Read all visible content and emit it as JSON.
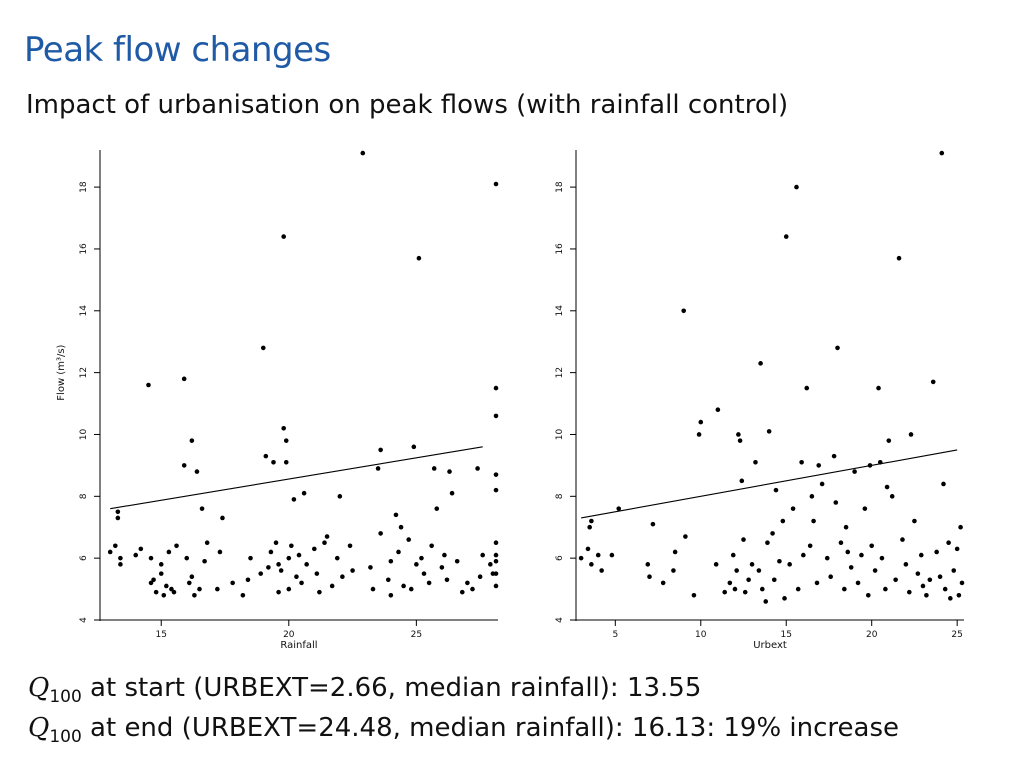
{
  "slide": {
    "title": "Peak flow changes",
    "subtitle": "Impact of urbanisation on peak flows (with rainfall control)"
  },
  "stats": [
    {
      "q_label": "Q",
      "q_sub": "100",
      "text": " at start (URBEXT=2.66, median rainfall):  13.55"
    },
    {
      "q_label": "Q",
      "q_sub": "100",
      "text": " at end (URBEXT=24.48, median rainfall):  16.13:  19% increase"
    }
  ],
  "chart_data": [
    {
      "type": "scatter",
      "xlabel": "Rainfall",
      "ylabel": "Flow (m³/s)",
      "xlim": [
        12.6,
        28.2
      ],
      "ylim": [
        4,
        19.2
      ],
      "xticks": [
        15,
        20,
        25
      ],
      "xtick_labels": [
        "15",
        "20",
        "25"
      ],
      "yticks": [
        4,
        6,
        8,
        10,
        12,
        14,
        16,
        18
      ],
      "ytick_labels": [
        "4",
        "6",
        "8",
        "10",
        "12",
        "14",
        "16",
        "18"
      ],
      "point_color": "#000000",
      "trend_line": {
        "x": [
          13.0,
          27.6
        ],
        "y": [
          7.6,
          9.6
        ]
      },
      "points": [
        [
          13.0,
          6.2
        ],
        [
          13.2,
          6.4
        ],
        [
          13.3,
          7.3
        ],
        [
          13.3,
          7.5
        ],
        [
          13.4,
          6.0
        ],
        [
          13.4,
          5.8
        ],
        [
          14.0,
          6.1
        ],
        [
          14.2,
          6.3
        ],
        [
          14.5,
          11.6
        ],
        [
          14.6,
          5.2
        ],
        [
          14.6,
          6.0
        ],
        [
          14.7,
          5.3
        ],
        [
          14.8,
          4.9
        ],
        [
          15.0,
          5.5
        ],
        [
          15.0,
          5.8
        ],
        [
          15.1,
          4.8
        ],
        [
          15.2,
          5.1
        ],
        [
          15.3,
          6.2
        ],
        [
          15.4,
          5.0
        ],
        [
          15.5,
          4.9
        ],
        [
          15.6,
          6.4
        ],
        [
          15.9,
          11.8
        ],
        [
          15.9,
          9.0
        ],
        [
          16.0,
          6.0
        ],
        [
          16.1,
          5.2
        ],
        [
          16.2,
          5.4
        ],
        [
          16.2,
          9.8
        ],
        [
          16.3,
          4.8
        ],
        [
          16.4,
          8.8
        ],
        [
          16.5,
          5.0
        ],
        [
          16.6,
          7.6
        ],
        [
          16.7,
          5.9
        ],
        [
          16.8,
          6.5
        ],
        [
          17.2,
          5.0
        ],
        [
          17.3,
          6.2
        ],
        [
          17.4,
          7.3
        ],
        [
          17.8,
          5.2
        ],
        [
          18.2,
          4.8
        ],
        [
          18.4,
          5.3
        ],
        [
          18.5,
          6.0
        ],
        [
          18.9,
          5.5
        ],
        [
          19.0,
          12.8
        ],
        [
          19.1,
          9.3
        ],
        [
          19.2,
          5.7
        ],
        [
          19.3,
          6.2
        ],
        [
          19.4,
          9.1
        ],
        [
          19.5,
          6.5
        ],
        [
          19.6,
          5.8
        ],
        [
          19.6,
          4.9
        ],
        [
          19.7,
          5.6
        ],
        [
          19.8,
          10.2
        ],
        [
          19.8,
          16.4
        ],
        [
          19.9,
          9.1
        ],
        [
          19.9,
          9.8
        ],
        [
          20.0,
          5.0
        ],
        [
          20.0,
          6.0
        ],
        [
          20.1,
          6.4
        ],
        [
          20.2,
          7.9
        ],
        [
          20.3,
          5.4
        ],
        [
          20.4,
          6.1
        ],
        [
          20.5,
          5.2
        ],
        [
          20.6,
          8.1
        ],
        [
          20.7,
          5.8
        ],
        [
          21.0,
          6.3
        ],
        [
          21.1,
          5.5
        ],
        [
          21.2,
          4.9
        ],
        [
          21.4,
          6.5
        ],
        [
          21.5,
          6.7
        ],
        [
          21.7,
          5.1
        ],
        [
          21.9,
          6.0
        ],
        [
          22.0,
          8.0
        ],
        [
          22.1,
          5.4
        ],
        [
          22.4,
          6.4
        ],
        [
          22.5,
          5.6
        ],
        [
          22.9,
          19.1
        ],
        [
          23.2,
          5.7
        ],
        [
          23.3,
          5.0
        ],
        [
          23.5,
          8.9
        ],
        [
          23.6,
          9.5
        ],
        [
          23.6,
          6.8
        ],
        [
          23.9,
          5.3
        ],
        [
          24.0,
          4.8
        ],
        [
          24.0,
          5.9
        ],
        [
          24.2,
          7.4
        ],
        [
          24.3,
          6.2
        ],
        [
          24.4,
          7.0
        ],
        [
          24.5,
          5.1
        ],
        [
          24.7,
          6.6
        ],
        [
          24.8,
          5.0
        ],
        [
          24.9,
          9.6
        ],
        [
          25.0,
          5.8
        ],
        [
          25.1,
          15.7
        ],
        [
          25.2,
          6.0
        ],
        [
          25.3,
          5.5
        ],
        [
          25.5,
          5.2
        ],
        [
          25.6,
          6.4
        ],
        [
          25.7,
          8.9
        ],
        [
          25.8,
          7.6
        ],
        [
          26.0,
          5.7
        ],
        [
          26.1,
          6.1
        ],
        [
          26.2,
          5.3
        ],
        [
          26.3,
          8.8
        ],
        [
          26.4,
          8.1
        ],
        [
          26.6,
          5.9
        ],
        [
          26.8,
          4.9
        ],
        [
          27.0,
          5.2
        ],
        [
          27.2,
          5.0
        ],
        [
          27.4,
          8.9
        ],
        [
          27.5,
          5.4
        ],
        [
          27.6,
          6.1
        ],
        [
          27.9,
          5.8
        ],
        [
          28.0,
          5.5
        ],
        [
          28.6,
          10.6
        ],
        [
          28.6,
          5.5
        ],
        [
          28.6,
          5.9
        ],
        [
          28.6,
          5.1
        ],
        [
          29.0,
          8.2
        ],
        [
          29.6,
          8.7
        ],
        [
          29.6,
          11.5
        ],
        [
          30.2,
          18.1
        ],
        [
          30.2,
          6.1
        ],
        [
          30.4,
          6.5
        ]
      ]
    },
    {
      "type": "scatter",
      "xlabel": "Urbext",
      "ylabel": "",
      "xlim": [
        2.7,
        25.4
      ],
      "ylim": [
        4,
        19.2
      ],
      "xticks": [
        5,
        10,
        15,
        20,
        25
      ],
      "xtick_labels": [
        "5",
        "10",
        "15",
        "20",
        "25"
      ],
      "yticks": [
        4,
        6,
        8,
        10,
        12,
        14,
        16,
        18
      ],
      "ytick_labels": [
        "4",
        "6",
        "8",
        "10",
        "12",
        "14",
        "16",
        "18"
      ],
      "point_color": "#000000",
      "trend_line": {
        "x": [
          3.0,
          25.0
        ],
        "y": [
          7.3,
          9.5
        ]
      },
      "points": [
        [
          3.0,
          6.0
        ],
        [
          3.4,
          6.3
        ],
        [
          3.5,
          7.0
        ],
        [
          3.6,
          7.2
        ],
        [
          3.6,
          5.8
        ],
        [
          4.0,
          6.1
        ],
        [
          4.2,
          5.6
        ],
        [
          4.8,
          6.1
        ],
        [
          5.2,
          7.6
        ],
        [
          6.9,
          5.8
        ],
        [
          7.0,
          5.4
        ],
        [
          7.2,
          7.1
        ],
        [
          7.8,
          5.2
        ],
        [
          8.4,
          5.6
        ],
        [
          8.5,
          6.2
        ],
        [
          9.0,
          14.0
        ],
        [
          9.1,
          6.7
        ],
        [
          9.6,
          4.8
        ],
        [
          9.9,
          10.0
        ],
        [
          10.0,
          10.4
        ],
        [
          11.0,
          10.8
        ],
        [
          11.4,
          4.9
        ],
        [
          11.7,
          5.2
        ],
        [
          11.9,
          6.1
        ],
        [
          12.0,
          5.0
        ],
        [
          12.1,
          5.6
        ],
        [
          12.2,
          10.0
        ],
        [
          12.4,
          8.5
        ],
        [
          12.5,
          6.6
        ],
        [
          12.6,
          4.9
        ],
        [
          12.8,
          5.3
        ],
        [
          13.0,
          5.8
        ],
        [
          13.2,
          9.1
        ],
        [
          13.4,
          5.6
        ],
        [
          13.5,
          12.3
        ],
        [
          13.6,
          5.0
        ],
        [
          13.8,
          4.6
        ],
        [
          13.9,
          6.5
        ],
        [
          14.0,
          10.1
        ],
        [
          14.2,
          6.8
        ],
        [
          14.3,
          5.3
        ],
        [
          14.4,
          8.2
        ],
        [
          14.6,
          5.9
        ],
        [
          14.8,
          7.2
        ],
        [
          14.9,
          4.7
        ],
        [
          15.0,
          16.4
        ],
        [
          15.2,
          5.8
        ],
        [
          15.4,
          7.6
        ],
        [
          15.6,
          18.0
        ],
        [
          15.7,
          5.0
        ],
        [
          15.9,
          9.1
        ],
        [
          16.0,
          6.1
        ],
        [
          16.2,
          11.5
        ],
        [
          16.4,
          6.4
        ],
        [
          16.6,
          7.2
        ],
        [
          16.8,
          5.2
        ],
        [
          16.9,
          9.0
        ],
        [
          17.1,
          8.4
        ],
        [
          17.4,
          6.0
        ],
        [
          17.6,
          5.4
        ],
        [
          17.8,
          9.3
        ],
        [
          17.9,
          7.8
        ],
        [
          18.0,
          12.8
        ],
        [
          18.2,
          6.5
        ],
        [
          18.4,
          5.0
        ],
        [
          18.5,
          7.0
        ],
        [
          18.6,
          6.2
        ],
        [
          18.8,
          5.7
        ],
        [
          19.0,
          8.8
        ],
        [
          19.2,
          5.2
        ],
        [
          19.4,
          6.1
        ],
        [
          19.6,
          7.6
        ],
        [
          19.8,
          4.8
        ],
        [
          19.9,
          9.0
        ],
        [
          20.0,
          6.4
        ],
        [
          20.2,
          5.6
        ],
        [
          20.4,
          11.5
        ],
        [
          20.5,
          9.1
        ],
        [
          20.6,
          6.0
        ],
        [
          20.8,
          5.0
        ],
        [
          21.0,
          9.8
        ],
        [
          21.2,
          8.0
        ],
        [
          21.4,
          5.3
        ],
        [
          21.6,
          15.7
        ],
        [
          21.8,
          6.6
        ],
        [
          22.0,
          5.8
        ],
        [
          22.2,
          4.9
        ],
        [
          22.3,
          10.0
        ],
        [
          22.5,
          7.2
        ],
        [
          22.7,
          5.5
        ],
        [
          22.9,
          6.1
        ],
        [
          23.0,
          5.1
        ],
        [
          23.2,
          4.8
        ],
        [
          23.4,
          5.3
        ],
        [
          23.6,
          11.7
        ],
        [
          23.8,
          6.2
        ],
        [
          24.0,
          5.4
        ],
        [
          24.1,
          19.1
        ],
        [
          24.2,
          8.4
        ],
        [
          24.3,
          5.0
        ],
        [
          24.5,
          6.5
        ],
        [
          24.6,
          4.7
        ],
        [
          24.8,
          5.6
        ],
        [
          25.0,
          6.3
        ],
        [
          25.1,
          4.8
        ],
        [
          25.2,
          7.0
        ],
        [
          25.3,
          5.2
        ],
        [
          12.3,
          9.8
        ],
        [
          16.5,
          8.0
        ],
        [
          20.9,
          8.3
        ],
        [
          10.9,
          5.8
        ]
      ]
    }
  ]
}
